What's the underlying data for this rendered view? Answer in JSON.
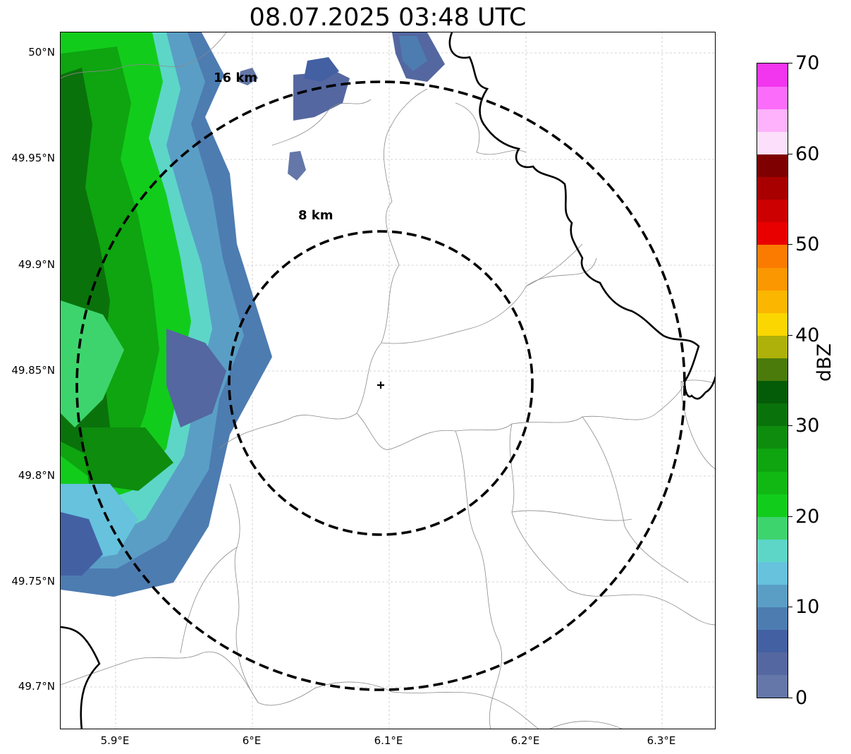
{
  "title": "08.07.2025 03:48 UTC",
  "map": {
    "lon_range": [
      5.86,
      6.34
    ],
    "lat_range": [
      49.68,
      50.01
    ],
    "lat_ticks": [
      "50°N",
      "49.95°N",
      "49.9°N",
      "49.85°N",
      "49.8°N",
      "49.75°N",
      "49.7°N"
    ],
    "lon_ticks": [
      "5.9°E",
      "6°E",
      "6.1°E",
      "6.2°E",
      "6.3°E"
    ],
    "gridlines": true,
    "radar_site": {
      "lon": 6.095,
      "lat": 49.843,
      "marker": "plus"
    },
    "range_rings": [
      {
        "label": "8 km",
        "radius_km": 8,
        "style": "dashed"
      },
      {
        "label": "16 km",
        "radius_km": 16,
        "style": "dashed"
      }
    ],
    "precipitation": "reflectivity band along the western edge of the map, strongest 20–35 dBZ",
    "boundaries": [
      "national border (thick black)",
      "regional borders (thin gray)"
    ]
  },
  "colorbar": {
    "label": "dBZ",
    "ticks": [
      "0",
      "10",
      "20",
      "30",
      "40",
      "50",
      "60",
      "70"
    ],
    "range": [
      0,
      70
    ],
    "step": 2.5,
    "colors": [
      "#6477a8",
      "#5467a0",
      "#4360a3",
      "#4d7cb1",
      "#5a9ec6",
      "#66c2dd",
      "#5dd6c8",
      "#3ed46d",
      "#12cc1c",
      "#11b813",
      "#0ea510",
      "#0e8c0e",
      "#0a720b",
      "#055c08",
      "#4a7b0b",
      "#adb109",
      "#fbd600",
      "#fbb600",
      "#fb9700",
      "#fb7b00",
      "#e80000",
      "#cc0000",
      "#a80000",
      "#7f0000",
      "#fcdffb",
      "#fdb2fb",
      "#fc6cfb",
      "#f235ee"
    ]
  }
}
